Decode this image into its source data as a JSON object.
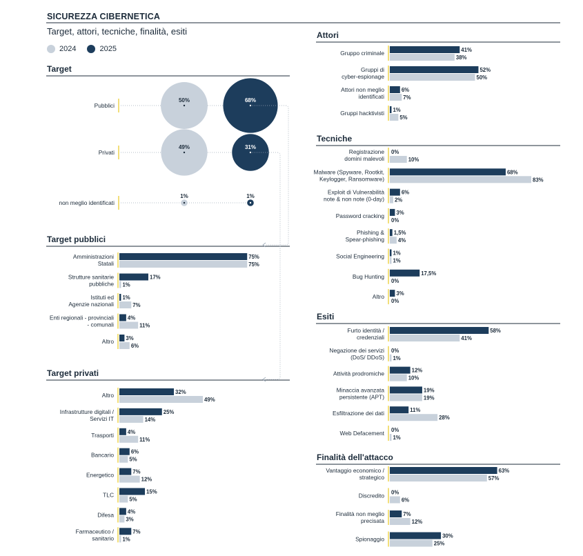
{
  "title": "SICUREZZA CIBERNETICA",
  "subtitle": "Target, attori, tecniche, finalità, esiti",
  "legend": [
    {
      "label": "2024",
      "color": "#c8d1db"
    },
    {
      "label": "2025",
      "color": "#1d3d5c"
    }
  ],
  "colors": {
    "y2024": "#c8d1db",
    "y2025": "#1d3d5c",
    "accent": "#f2df7a"
  },
  "chart_data": [
    {
      "type": "bubble",
      "title": "Target",
      "categories": [
        "Pubblici",
        "Privati",
        "non meglio identificati"
      ],
      "series": [
        {
          "name": "2024",
          "values": [
            50,
            49,
            1
          ],
          "labels": [
            "50%",
            "49%",
            "1%"
          ]
        },
        {
          "name": "2025",
          "values": [
            68,
            31,
            1
          ],
          "labels": [
            "68%",
            "31%",
            "1%"
          ]
        }
      ]
    },
    {
      "type": "bar",
      "title": "Target pubblici",
      "categories": [
        [
          "Amministrazioni",
          "Statali"
        ],
        [
          "Strutture sanitarie",
          "pubbliche"
        ],
        [
          "Istituti ed",
          "Agenzie nazionali"
        ],
        [
          "Enti regionali - provinciali",
          "- comunali"
        ],
        [
          "Altro"
        ]
      ],
      "series": [
        {
          "name": "2025",
          "values": [
            75,
            17,
            1,
            4,
            3
          ],
          "labels": [
            "75%",
            "17%",
            "1%",
            "4%",
            "3%"
          ]
        },
        {
          "name": "2024",
          "values": [
            75,
            1,
            7,
            11,
            6
          ],
          "labels": [
            "75%",
            "1%",
            "7%",
            "11%",
            "6%"
          ]
        }
      ]
    },
    {
      "type": "bar",
      "title": "Target privati",
      "categories": [
        [
          "Altro"
        ],
        [
          "Infrastrutture digitali /",
          "Servizi IT"
        ],
        [
          "Trasporti"
        ],
        [
          "Bancario"
        ],
        [
          "Energetico"
        ],
        [
          "TLC"
        ],
        [
          "Difesa"
        ],
        [
          "Farmaceutico /",
          "sanitario"
        ]
      ],
      "series": [
        {
          "name": "2025",
          "values": [
            32,
            25,
            4,
            6,
            7,
            15,
            4,
            7
          ],
          "labels": [
            "32%",
            "25%",
            "4%",
            "6%",
            "7%",
            "15%",
            "4%",
            "7%"
          ]
        },
        {
          "name": "2024",
          "values": [
            49,
            14,
            11,
            5,
            12,
            5,
            3,
            1
          ],
          "labels": [
            "49%",
            "14%",
            "11%",
            "5%",
            "12%",
            "5%",
            "3%",
            "1%"
          ]
        }
      ]
    },
    {
      "type": "bar",
      "title": "Attori",
      "categories": [
        [
          "Gruppo criminale"
        ],
        [
          "Gruppi di",
          "cyber-espionage"
        ],
        [
          "Attori non meglio",
          "identificati"
        ],
        [
          "Gruppi hacktivisti"
        ]
      ],
      "series": [
        {
          "name": "2025",
          "values": [
            41,
            52,
            6,
            1
          ],
          "labels": [
            "41%",
            "52%",
            "6%",
            "1%"
          ]
        },
        {
          "name": "2024",
          "values": [
            38,
            50,
            7,
            5
          ],
          "labels": [
            "38%",
            "50%",
            "7%",
            "5%"
          ]
        }
      ]
    },
    {
      "type": "bar",
      "title": "Tecniche",
      "categories": [
        [
          "Registrazione",
          "domini malevoli"
        ],
        [
          "Malware (Spyware, Rootkit,",
          "Keylogger, Ransomware)"
        ],
        [
          "Exploit di Vulnerabilità",
          "note & non note (0-day)"
        ],
        [
          "Password cracking"
        ],
        [
          "Phishing &",
          "Spear-phishing"
        ],
        [
          "Social Engineering"
        ],
        [
          "Bug Hunting"
        ],
        [
          "Altro"
        ]
      ],
      "series": [
        {
          "name": "2025",
          "values": [
            0,
            68,
            6,
            3,
            1.5,
            1,
            17.5,
            3
          ],
          "labels": [
            "0%",
            "68%",
            "6%",
            "3%",
            "1,5%",
            "1%",
            "17,5%",
            "3%"
          ]
        },
        {
          "name": "2024",
          "values": [
            10,
            83,
            2,
            0,
            4,
            1,
            0,
            0
          ],
          "labels": [
            "10%",
            "83%",
            "2%",
            "0%",
            "4%",
            "1%",
            "0%",
            "0%"
          ]
        }
      ]
    },
    {
      "type": "bar",
      "title": "Esiti",
      "categories": [
        [
          "Furto identità /",
          "credenziali"
        ],
        [
          "Negazione dei servizi",
          "(DoS/ DDoS)"
        ],
        [
          "Attività prodromiche"
        ],
        [
          "Minaccia avanzata",
          "persistente (APT)"
        ],
        [
          "Esfiltrazione dei dati"
        ],
        [
          "Web Defacement"
        ]
      ],
      "series": [
        {
          "name": "2025",
          "values": [
            58,
            0,
            12,
            19,
            11,
            0
          ],
          "labels": [
            "58%",
            "0%",
            "12%",
            "19%",
            "11%",
            "0%"
          ]
        },
        {
          "name": "2024",
          "values": [
            41,
            1,
            10,
            19,
            28,
            1
          ],
          "labels": [
            "41%",
            "1%",
            "10%",
            "19%",
            "28%",
            "1%"
          ]
        }
      ]
    },
    {
      "type": "bar",
      "title": "Finalità dell'attacco",
      "categories": [
        [
          "Vantaggio economico /",
          "strategico"
        ],
        [
          "Discredito"
        ],
        [
          "Finalità non meglio",
          "precisata"
        ],
        [
          "Spionaggio"
        ]
      ],
      "series": [
        {
          "name": "2025",
          "values": [
            63,
            0,
            7,
            30
          ],
          "labels": [
            "63%",
            "0%",
            "7%",
            "30%"
          ]
        },
        {
          "name": "2024",
          "values": [
            57,
            6,
            12,
            25
          ],
          "labels": [
            "57%",
            "6%",
            "12%",
            "25%"
          ]
        }
      ]
    }
  ]
}
